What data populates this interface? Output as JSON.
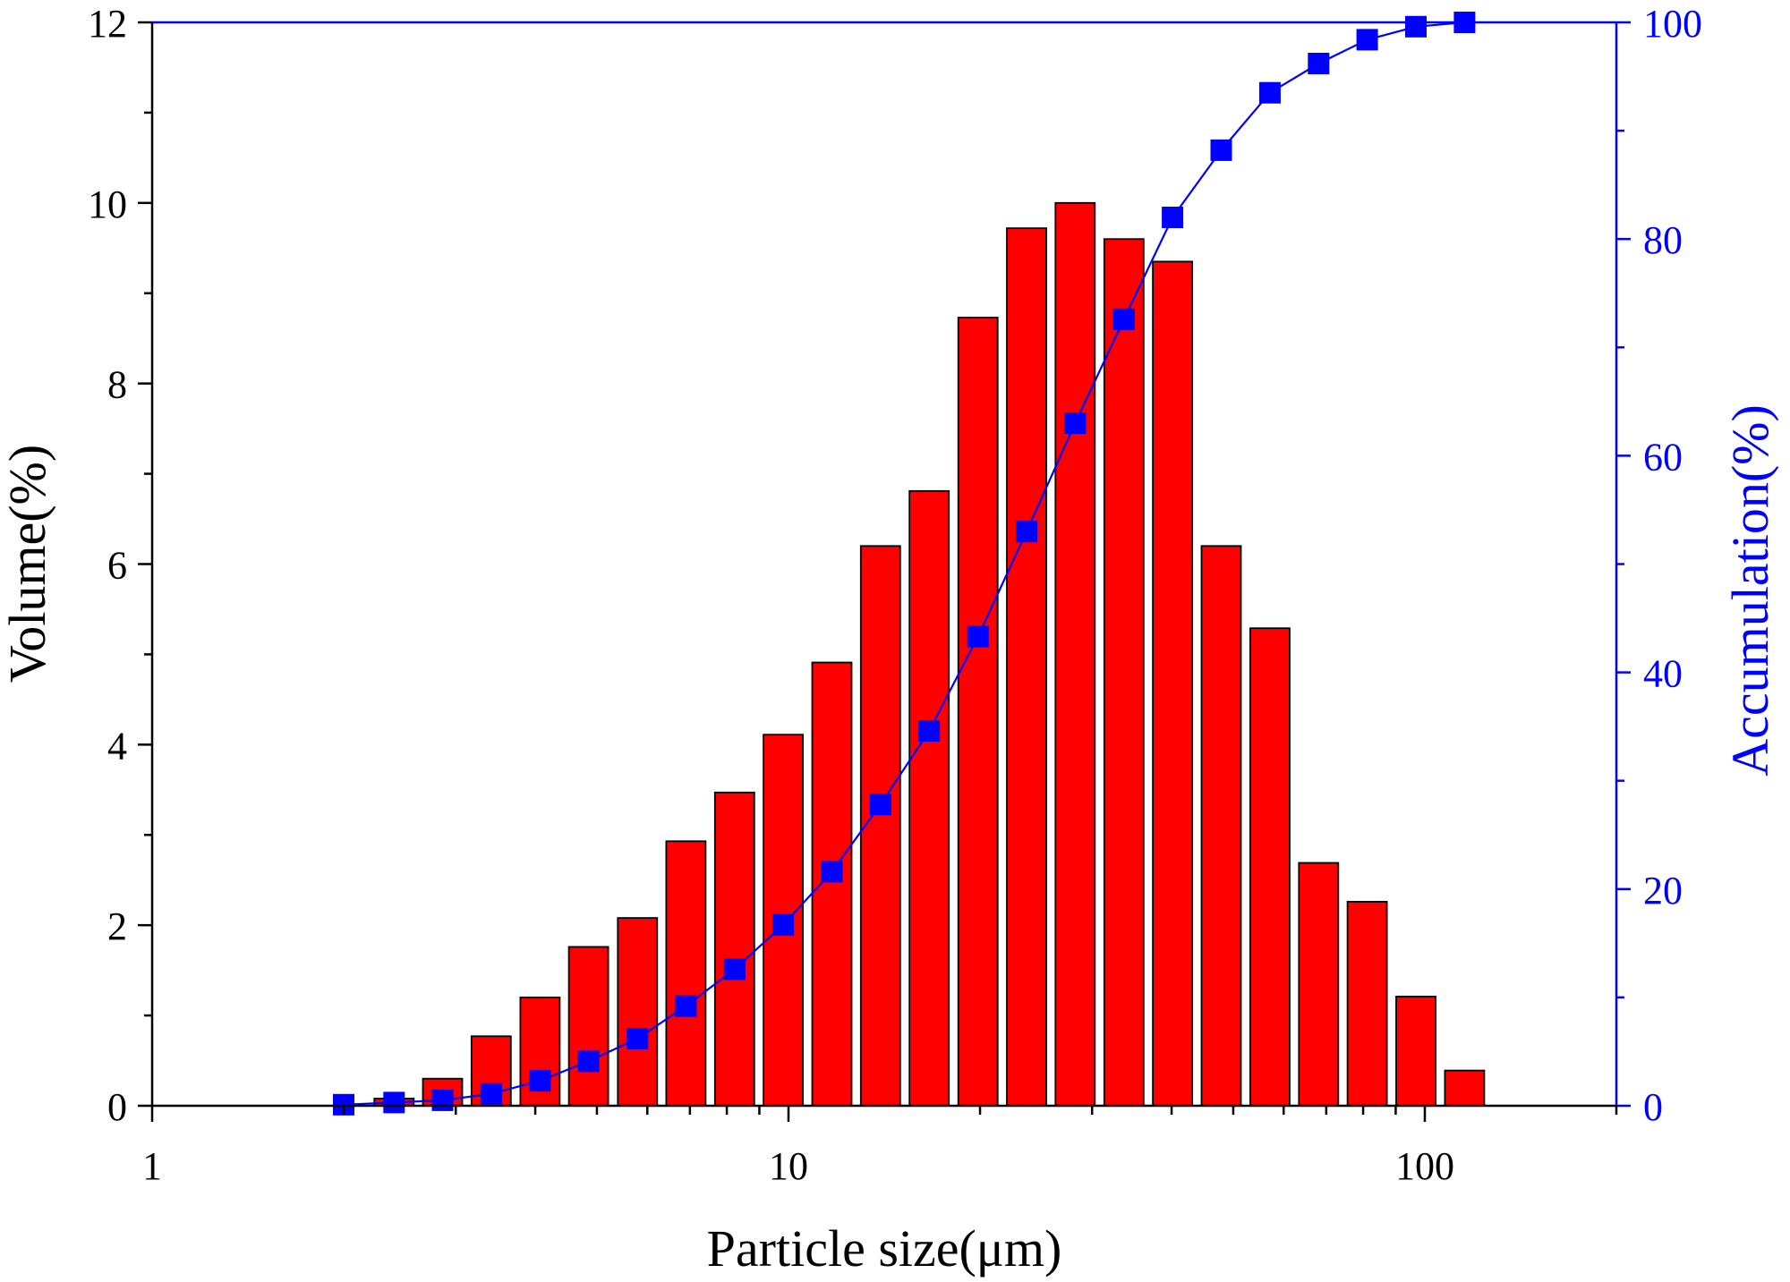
{
  "chart_data": {
    "type": "bar",
    "xlabel": "Particle size(μm)",
    "ylabel_left": "Volume(%)",
    "ylabel_right": "Accumulation(%)",
    "x_scale": "log",
    "xlim": [
      1,
      200
    ],
    "ylim_left": [
      0,
      12
    ],
    "ylim_right": [
      0,
      100
    ],
    "x_ticks": [
      {
        "value": 1,
        "label": "1"
      },
      {
        "value": 10,
        "label": "10"
      },
      {
        "value": 100,
        "label": "100"
      }
    ],
    "y_ticks_left": [
      {
        "value": 0,
        "label": "0"
      },
      {
        "value": 2,
        "label": "2"
      },
      {
        "value": 4,
        "label": "4"
      },
      {
        "value": 6,
        "label": "6"
      },
      {
        "value": 8,
        "label": "8"
      },
      {
        "value": 10,
        "label": "10"
      },
      {
        "value": 12,
        "label": "12"
      }
    ],
    "y_ticks_right": [
      {
        "value": 0,
        "label": "0"
      },
      {
        "value": 20,
        "label": "20"
      },
      {
        "value": 40,
        "label": "40"
      },
      {
        "value": 60,
        "label": "60"
      },
      {
        "value": 80,
        "label": "80"
      },
      {
        "value": 100,
        "label": "100"
      }
    ],
    "sizes": [
      2.0,
      2.4,
      2.86,
      3.41,
      4.07,
      4.85,
      5.79,
      6.9,
      8.23,
      9.81,
      11.7,
      13.95,
      16.64,
      19.85,
      23.67,
      28.22,
      33.66,
      40.14,
      47.87,
      57.09,
      68.08,
      81.19,
      96.83,
      115.48
    ],
    "series": [
      {
        "name": "Volume(%)",
        "type": "bar",
        "axis": "left",
        "color": "#ff0000",
        "values": [
          0,
          0.08,
          0.3,
          0.77,
          1.2,
          1.76,
          2.08,
          2.93,
          3.47,
          4.11,
          4.91,
          6.2,
          6.81,
          8.73,
          9.72,
          10.0,
          9.6,
          9.35,
          6.2,
          5.29,
          2.69,
          2.26,
          1.21,
          0.39
        ]
      },
      {
        "name": "Accumulation(%)",
        "type": "line",
        "axis": "right",
        "color": "#0000ff",
        "marker": "square",
        "values": [
          0.1,
          0.3,
          0.5,
          1.1,
          2.3,
          4.1,
          6.2,
          9.2,
          12.6,
          16.7,
          21.6,
          27.8,
          34.6,
          43.3,
          53.0,
          63.0,
          72.6,
          82.0,
          88.2,
          93.5,
          96.2,
          98.4,
          99.6,
          100
        ]
      }
    ]
  }
}
